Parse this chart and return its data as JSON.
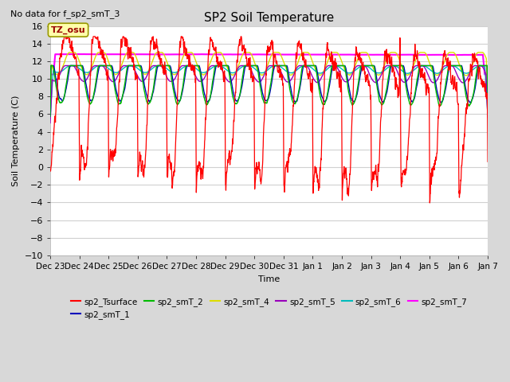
{
  "title": "SP2 Soil Temperature",
  "no_data_label": "No data for f_sp2_smT_3",
  "tz_label": "TZ_osu",
  "xlabel": "Time",
  "ylabel": "Soil Temperature (C)",
  "ylim": [
    -10,
    16
  ],
  "xlim": [
    0,
    360
  ],
  "x_tick_labels": [
    "Dec 23",
    "Dec 24",
    "Dec 25",
    "Dec 26",
    "Dec 27",
    "Dec 28",
    "Dec 29",
    "Dec 30",
    "Dec 31",
    "Jan 1",
    "Jan 2",
    "Jan 3",
    "Jan 4",
    "Jan 5",
    "Jan 6",
    "Jan 7"
  ],
  "x_tick_positions": [
    0,
    24,
    48,
    72,
    96,
    120,
    144,
    168,
    192,
    216,
    240,
    264,
    288,
    312,
    336,
    360
  ],
  "yticks": [
    -10,
    -8,
    -6,
    -4,
    -2,
    0,
    2,
    4,
    6,
    8,
    10,
    12,
    14,
    16
  ],
  "fig_bg_color": "#d8d8d8",
  "plot_bg_color": "#ffffff",
  "grid_color": "#d0d0d0",
  "legend": [
    {
      "label": "sp2_Tsurface",
      "color": "#ff0000"
    },
    {
      "label": "sp2_smT_1",
      "color": "#0000bb"
    },
    {
      "label": "sp2_smT_2",
      "color": "#00bb00"
    },
    {
      "label": "sp2_smT_4",
      "color": "#dddd00"
    },
    {
      "label": "sp2_smT_5",
      "color": "#9900bb"
    },
    {
      "label": "sp2_smT_6",
      "color": "#00bbbb"
    },
    {
      "label": "sp2_smT_7",
      "color": "#ff00ff"
    }
  ]
}
